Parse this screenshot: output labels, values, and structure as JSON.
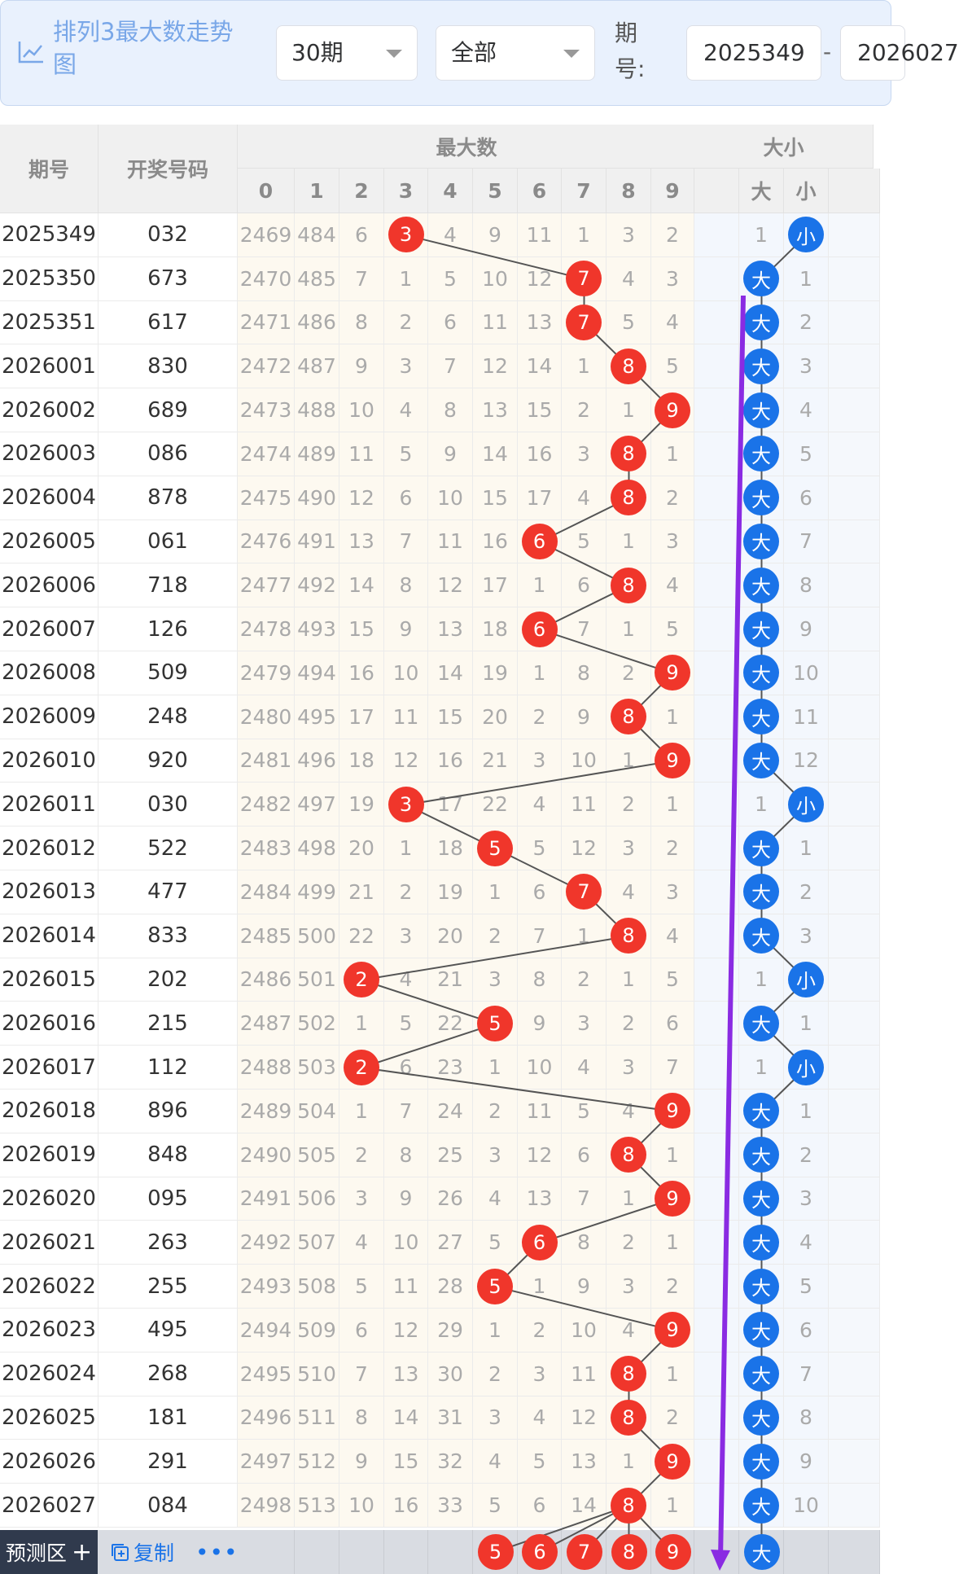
{
  "toolbar": {
    "title": "排列3最大数走势图",
    "title_icon": "line-chart-icon",
    "period_select": "30期",
    "filter_select": "全部",
    "period_label": "期号:",
    "from_value": "2025349",
    "dash": "-",
    "to_value": "2026027"
  },
  "table": {
    "headers": {
      "period": "期号",
      "draw_number": "开奖号码",
      "max_group": "最大数",
      "size_group": "大小",
      "digits": [
        "0",
        "1",
        "2",
        "3",
        "4",
        "5",
        "6",
        "7",
        "8",
        "9"
      ],
      "size_cols": [
        "大",
        "小"
      ]
    },
    "rows": [
      {
        "period": "2025349",
        "number": "032",
        "max": 3,
        "counts": [
          "2469",
          "484",
          "6",
          "3",
          "4",
          "9",
          "11",
          "1",
          "3",
          "2"
        ],
        "size": "small",
        "size_counts": [
          "1",
          "小"
        ]
      },
      {
        "period": "2025350",
        "number": "673",
        "max": 7,
        "counts": [
          "2470",
          "485",
          "7",
          "1",
          "5",
          "10",
          "12",
          "7",
          "4",
          "3"
        ],
        "size": "big",
        "size_counts": [
          "大",
          "1"
        ]
      },
      {
        "period": "2025351",
        "number": "617",
        "max": 7,
        "counts": [
          "2471",
          "486",
          "8",
          "2",
          "6",
          "11",
          "13",
          "7",
          "5",
          "4"
        ],
        "size": "big",
        "size_counts": [
          "大",
          "2"
        ]
      },
      {
        "period": "2026001",
        "number": "830",
        "max": 8,
        "counts": [
          "2472",
          "487",
          "9",
          "3",
          "7",
          "12",
          "14",
          "1",
          "8",
          "5"
        ],
        "size": "big",
        "size_counts": [
          "大",
          "3"
        ]
      },
      {
        "period": "2026002",
        "number": "689",
        "max": 9,
        "counts": [
          "2473",
          "488",
          "10",
          "4",
          "8",
          "13",
          "15",
          "2",
          "1",
          "9"
        ],
        "size": "big",
        "size_counts": [
          "大",
          "4"
        ]
      },
      {
        "period": "2026003",
        "number": "086",
        "max": 8,
        "counts": [
          "2474",
          "489",
          "11",
          "5",
          "9",
          "14",
          "16",
          "3",
          "8",
          "1"
        ],
        "size": "big",
        "size_counts": [
          "大",
          "5"
        ]
      },
      {
        "period": "2026004",
        "number": "878",
        "max": 8,
        "counts": [
          "2475",
          "490",
          "12",
          "6",
          "10",
          "15",
          "17",
          "4",
          "8",
          "2"
        ],
        "size": "big",
        "size_counts": [
          "大",
          "6"
        ]
      },
      {
        "period": "2026005",
        "number": "061",
        "max": 6,
        "counts": [
          "2476",
          "491",
          "13",
          "7",
          "11",
          "16",
          "6",
          "5",
          "1",
          "3"
        ],
        "size": "big",
        "size_counts": [
          "大",
          "7"
        ]
      },
      {
        "period": "2026006",
        "number": "718",
        "max": 8,
        "counts": [
          "2477",
          "492",
          "14",
          "8",
          "12",
          "17",
          "1",
          "6",
          "8",
          "4"
        ],
        "size": "big",
        "size_counts": [
          "大",
          "8"
        ]
      },
      {
        "period": "2026007",
        "number": "126",
        "max": 6,
        "counts": [
          "2478",
          "493",
          "15",
          "9",
          "13",
          "18",
          "6",
          "7",
          "1",
          "5"
        ],
        "size": "big",
        "size_counts": [
          "大",
          "9"
        ]
      },
      {
        "period": "2026008",
        "number": "509",
        "max": 9,
        "counts": [
          "2479",
          "494",
          "16",
          "10",
          "14",
          "19",
          "1",
          "8",
          "2",
          "9"
        ],
        "size": "big",
        "size_counts": [
          "大",
          "10"
        ]
      },
      {
        "period": "2026009",
        "number": "248",
        "max": 8,
        "counts": [
          "2480",
          "495",
          "17",
          "11",
          "15",
          "20",
          "2",
          "9",
          "8",
          "1"
        ],
        "size": "big",
        "size_counts": [
          "大",
          "11"
        ]
      },
      {
        "period": "2026010",
        "number": "920",
        "max": 9,
        "counts": [
          "2481",
          "496",
          "18",
          "12",
          "16",
          "21",
          "3",
          "10",
          "1",
          "9"
        ],
        "size": "big",
        "size_counts": [
          "大",
          "12"
        ]
      },
      {
        "period": "2026011",
        "number": "030",
        "max": 3,
        "counts": [
          "2482",
          "497",
          "19",
          "3",
          "17",
          "22",
          "4",
          "11",
          "2",
          "1"
        ],
        "size": "small",
        "size_counts": [
          "1",
          "小"
        ]
      },
      {
        "period": "2026012",
        "number": "522",
        "max": 5,
        "counts": [
          "2483",
          "498",
          "20",
          "1",
          "18",
          "5",
          "5",
          "12",
          "3",
          "2"
        ],
        "size": "big",
        "size_counts": [
          "大",
          "1"
        ]
      },
      {
        "period": "2026013",
        "number": "477",
        "max": 7,
        "counts": [
          "2484",
          "499",
          "21",
          "2",
          "19",
          "1",
          "6",
          "7",
          "4",
          "3"
        ],
        "size": "big",
        "size_counts": [
          "大",
          "2"
        ]
      },
      {
        "period": "2026014",
        "number": "833",
        "max": 8,
        "counts": [
          "2485",
          "500",
          "22",
          "3",
          "20",
          "2",
          "7",
          "1",
          "8",
          "4"
        ],
        "size": "big",
        "size_counts": [
          "大",
          "3"
        ]
      },
      {
        "period": "2026015",
        "number": "202",
        "max": 2,
        "counts": [
          "2486",
          "501",
          "2",
          "4",
          "21",
          "3",
          "8",
          "2",
          "1",
          "5"
        ],
        "size": "small",
        "size_counts": [
          "1",
          "小"
        ]
      },
      {
        "period": "2026016",
        "number": "215",
        "max": 5,
        "counts": [
          "2487",
          "502",
          "1",
          "5",
          "22",
          "5",
          "9",
          "3",
          "2",
          "6"
        ],
        "size": "big",
        "size_counts": [
          "大",
          "1"
        ]
      },
      {
        "period": "2026017",
        "number": "112",
        "max": 2,
        "counts": [
          "2488",
          "503",
          "2",
          "6",
          "23",
          "1",
          "10",
          "4",
          "3",
          "7"
        ],
        "size": "small",
        "size_counts": [
          "1",
          "小"
        ]
      },
      {
        "period": "2026018",
        "number": "896",
        "max": 9,
        "counts": [
          "2489",
          "504",
          "1",
          "7",
          "24",
          "2",
          "11",
          "5",
          "4",
          "9"
        ],
        "size": "big",
        "size_counts": [
          "大",
          "1"
        ]
      },
      {
        "period": "2026019",
        "number": "848",
        "max": 8,
        "counts": [
          "2490",
          "505",
          "2",
          "8",
          "25",
          "3",
          "12",
          "6",
          "8",
          "1"
        ],
        "size": "big",
        "size_counts": [
          "大",
          "2"
        ]
      },
      {
        "period": "2026020",
        "number": "095",
        "max": 9,
        "counts": [
          "2491",
          "506",
          "3",
          "9",
          "26",
          "4",
          "13",
          "7",
          "1",
          "9"
        ],
        "size": "big",
        "size_counts": [
          "大",
          "3"
        ]
      },
      {
        "period": "2026021",
        "number": "263",
        "max": 6,
        "counts": [
          "2492",
          "507",
          "4",
          "10",
          "27",
          "5",
          "6",
          "8",
          "2",
          "1"
        ],
        "size": "big",
        "size_counts": [
          "大",
          "4"
        ]
      },
      {
        "period": "2026022",
        "number": "255",
        "max": 5,
        "counts": [
          "2493",
          "508",
          "5",
          "11",
          "28",
          "5",
          "1",
          "9",
          "3",
          "2"
        ],
        "size": "big",
        "size_counts": [
          "大",
          "5"
        ]
      },
      {
        "period": "2026023",
        "number": "495",
        "max": 9,
        "counts": [
          "2494",
          "509",
          "6",
          "12",
          "29",
          "1",
          "2",
          "10",
          "4",
          "9"
        ],
        "size": "big",
        "size_counts": [
          "大",
          "6"
        ]
      },
      {
        "period": "2026024",
        "number": "268",
        "max": 8,
        "counts": [
          "2495",
          "510",
          "7",
          "13",
          "30",
          "2",
          "3",
          "11",
          "8",
          "1"
        ],
        "size": "big",
        "size_counts": [
          "大",
          "7"
        ]
      },
      {
        "period": "2026025",
        "number": "181",
        "max": 8,
        "counts": [
          "2496",
          "511",
          "8",
          "14",
          "31",
          "3",
          "4",
          "12",
          "8",
          "2"
        ],
        "size": "big",
        "size_counts": [
          "大",
          "8"
        ]
      },
      {
        "period": "2026026",
        "number": "291",
        "max": 9,
        "counts": [
          "2497",
          "512",
          "9",
          "15",
          "32",
          "4",
          "5",
          "13",
          "1",
          "9"
        ],
        "size": "big",
        "size_counts": [
          "大",
          "9"
        ]
      },
      {
        "period": "2026027",
        "number": "084",
        "max": 8,
        "counts": [
          "2498",
          "513",
          "10",
          "16",
          "33",
          "5",
          "6",
          "14",
          "8",
          "1"
        ],
        "size": "big",
        "size_counts": [
          "大",
          "10"
        ]
      }
    ]
  },
  "prediction": {
    "zone_label": "预测区",
    "zone_icon": "plus-icon",
    "copy_label": "复制",
    "copy_icon": "copy-icon",
    "more_icon": "more-dots-icon",
    "more_label": "•••",
    "predicted_max": [
      "5",
      "6",
      "7",
      "8",
      "9"
    ],
    "predicted_size": "大"
  },
  "colors": {
    "red_ball": "#f0362b",
    "blue_ball": "#1a73e8",
    "connector": "#555555",
    "annotation_arrow": "#8a2be2",
    "toolbar_bg": "#e9f1fd"
  }
}
